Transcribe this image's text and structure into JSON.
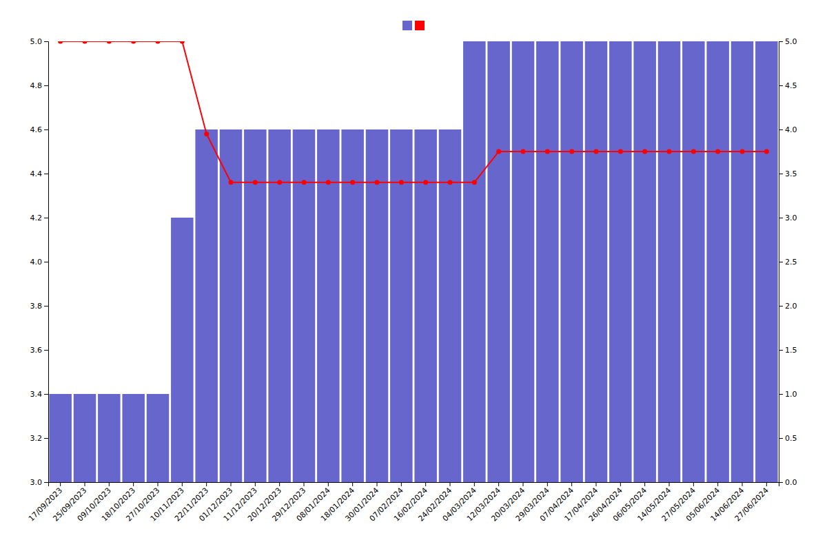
{
  "chart_data": {
    "type": "bar",
    "categories": [
      "17/09/2023",
      "25/09/2023",
      "09/10/2023",
      "18/10/2023",
      "27/10/2023",
      "10/11/2023",
      "22/11/2023",
      "01/12/2023",
      "11/12/2023",
      "20/12/2023",
      "29/12/2023",
      "08/01/2024",
      "18/01/2024",
      "30/01/2024",
      "07/02/2024",
      "16/02/2024",
      "24/02/2024",
      "04/03/2024",
      "12/03/2024",
      "20/03/2024",
      "29/03/2024",
      "07/04/2024",
      "17/04/2024",
      "26/04/2024",
      "06/05/2024",
      "14/05/2024",
      "27/05/2024",
      "05/06/2024",
      "14/06/2024",
      "27/06/2024"
    ],
    "series": [
      {
        "type": "bar",
        "color": "#6666cc",
        "values": [
          3.4,
          3.4,
          3.4,
          3.4,
          3.4,
          4.2,
          4.6,
          4.6,
          4.6,
          4.6,
          4.6,
          4.6,
          4.6,
          4.6,
          4.6,
          4.6,
          4.6,
          5.0,
          5.0,
          5.0,
          5.0,
          5.0,
          5.0,
          5.0,
          5.0,
          5.0,
          5.0,
          5.0,
          5.0,
          5.0
        ]
      },
      {
        "type": "line",
        "color": "#ff0000",
        "marker": "circle",
        "values": [
          5.0,
          5.0,
          5.0,
          5.0,
          5.0,
          5.0,
          4.58,
          4.36,
          4.36,
          4.36,
          4.36,
          4.36,
          4.36,
          4.36,
          4.36,
          4.36,
          4.36,
          4.36,
          4.5,
          4.5,
          4.5,
          4.5,
          4.5,
          4.5,
          4.5,
          4.5,
          4.5,
          4.5,
          4.5,
          4.5
        ]
      }
    ],
    "ylim": [
      3.0,
      5.0
    ],
    "yticks": [
      {
        "value": 3.0,
        "label": "3.0"
      },
      3.2,
      3.4,
      3.6,
      3.8,
      {
        "value": 4.0,
        "label": "4.0"
      },
      4.2,
      4.4,
      4.6,
      4.8,
      {
        "value": 5.0,
        "label": "5.0"
      }
    ],
    "y2lim": [
      0,
      5
    ],
    "y2ticks": [
      {
        "value": 0,
        "label": "0.0"
      },
      0.5,
      {
        "value": 1.0,
        "label": "1.0"
      },
      1.5,
      {
        "value": 2.0,
        "label": "2.0"
      },
      2.5,
      {
        "value": 3.0,
        "label": "3.0"
      },
      3.5,
      {
        "value": 4.0,
        "label": "4.0"
      },
      4.5,
      {
        "value": 5.0,
        "label": "5.0"
      }
    ],
    "grid": false,
    "legend": "top"
  }
}
